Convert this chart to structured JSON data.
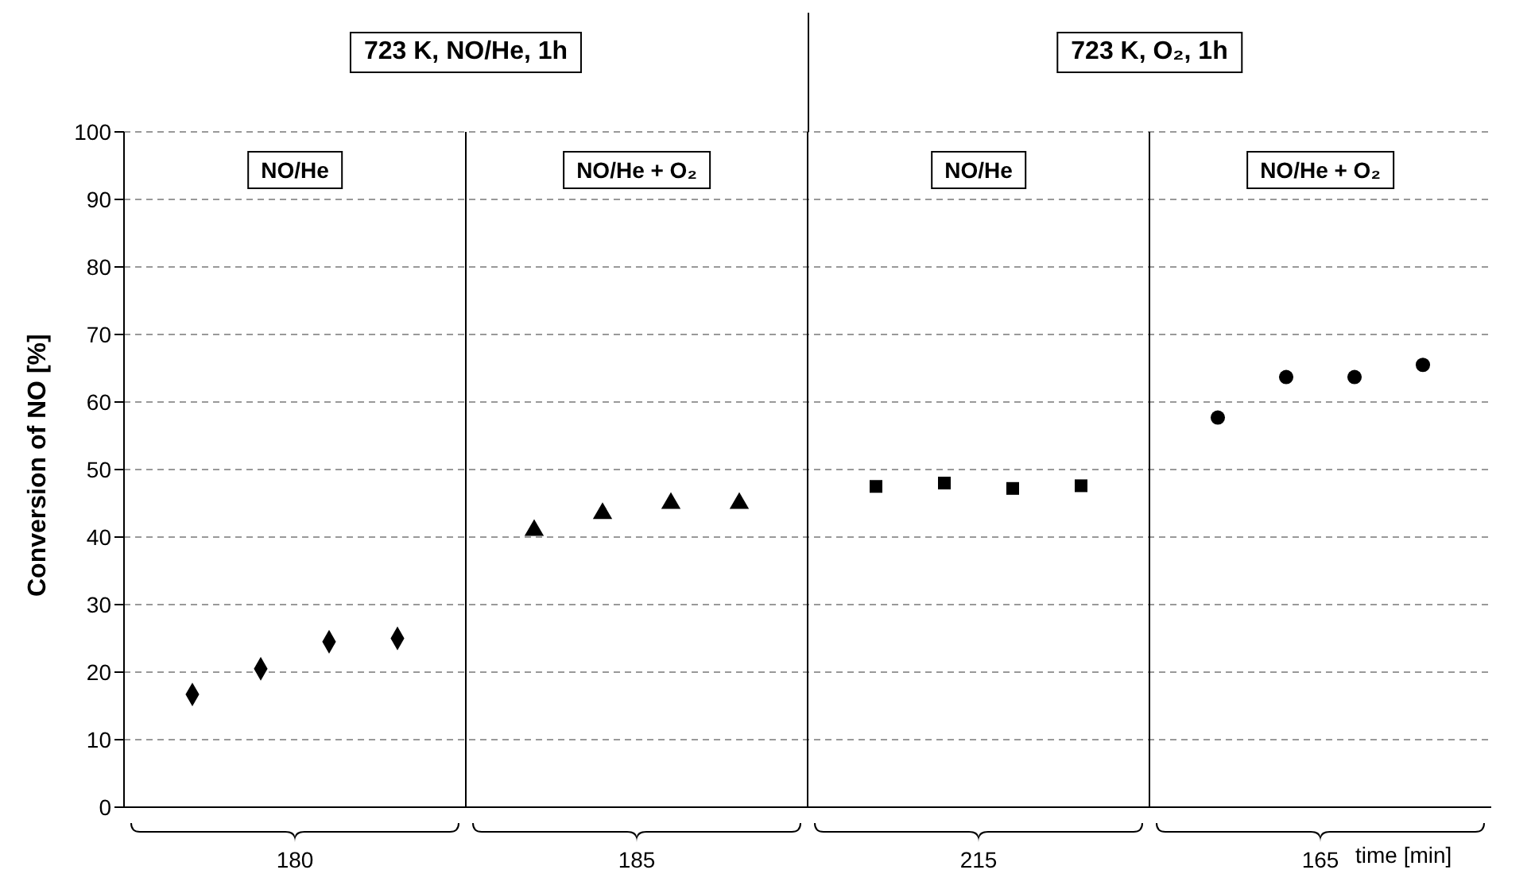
{
  "chart_data": {
    "type": "scatter",
    "xlabel": "time [min]",
    "ylabel": "Conversion of NO [%]",
    "categories": [
      "180",
      "185",
      "215",
      "165"
    ],
    "series": [
      {
        "x": [
          "180",
          "180",
          "180",
          "180"
        ],
        "values": [
          16.7,
          20.5,
          24.5,
          25
        ],
        "color": "#000000",
        "marker": "diamond"
      },
      {
        "x": [
          "185",
          "185",
          "185",
          "185"
        ],
        "values": [
          41,
          43.5,
          45,
          45
        ],
        "color": "#000000",
        "marker": "triangle"
      },
      {
        "x": [
          "215",
          "215",
          "215",
          "215"
        ],
        "values": [
          47.5,
          48,
          47.2,
          47.6
        ],
        "color": "#000000",
        "marker": "square"
      },
      {
        "x": [
          "165",
          "165",
          "165",
          "165"
        ],
        "values": [
          57.7,
          63.7,
          63.7,
          65.5
        ],
        "color": "#000000",
        "marker": "circle"
      }
    ],
    "ylim": [
      0,
      100
    ],
    "yticks": [
      0,
      10,
      20,
      30,
      40,
      50,
      60,
      70,
      80,
      90,
      100
    ],
    "grid": "y",
    "annotations": [
      "723 K, NO/He, 1h",
      "723 K, O₂, 1h",
      "NO/He",
      "NO/He + O₂",
      "NO/He",
      "NO/He + O₂"
    ]
  }
}
